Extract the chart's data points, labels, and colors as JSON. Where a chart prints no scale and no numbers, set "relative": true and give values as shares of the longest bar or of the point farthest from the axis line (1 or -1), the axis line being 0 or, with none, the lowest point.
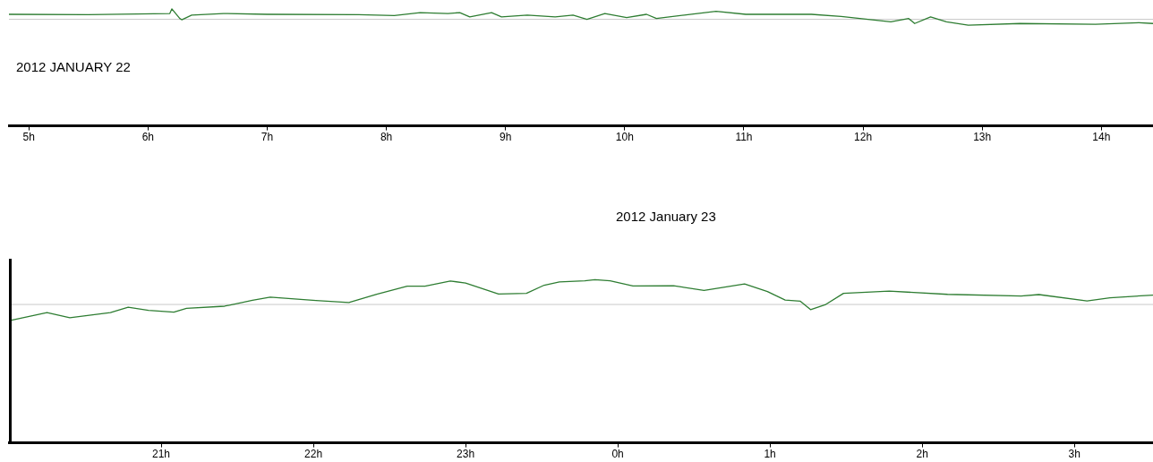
{
  "chart_data": [
    {
      "type": "line",
      "title": "2012 JANUARY 22",
      "relative": true,
      "x": [
        "2012-01-22T04:50",
        "2012-01-22T05:30",
        "2012-01-22T06:11",
        "2012-01-22T06:12",
        "2012-01-22T06:16",
        "2012-01-22T06:17",
        "2012-01-22T06:22",
        "2012-01-22T06:38",
        "2012-01-22T07:00",
        "2012-01-22T07:46",
        "2012-01-22T08:04",
        "2012-01-22T08:17",
        "2012-01-22T08:31",
        "2012-01-22T08:37",
        "2012-01-22T08:42",
        "2012-01-22T08:53",
        "2012-01-22T08:58",
        "2012-01-22T09:11",
        "2012-01-22T09:25",
        "2012-01-22T09:34",
        "2012-01-22T09:41",
        "2012-01-22T09:50",
        "2012-01-22T10:01",
        "2012-01-22T10:11",
        "2012-01-22T10:16",
        "2012-01-22T10:30",
        "2012-01-22T10:46",
        "2012-01-22T11:01",
        "2012-01-22T11:34",
        "2012-01-22T11:49",
        "2012-01-22T12:14",
        "2012-01-22T12:23",
        "2012-01-22T12:26",
        "2012-01-22T12:34",
        "2012-01-22T12:42",
        "2012-01-22T12:53",
        "2012-01-22T13:19",
        "2012-01-22T13:57",
        "2012-01-22T14:19",
        "2012-01-22T14:26"
      ],
      "series": [
        {
          "color": "#2e7d32",
          "values": [
            0.48,
            0.44,
            0.56,
            1,
            0.08,
            -0.04,
            0.4,
            0.56,
            0.48,
            0.44,
            0.36,
            0.64,
            0.56,
            0.64,
            0.24,
            0.64,
            0.24,
            0.4,
            0.24,
            0.4,
            0,
            0.56,
            0.16,
            0.48,
            0.08,
            0.4,
            0.76,
            0.48,
            0.48,
            0.28,
            -0.24,
            0.08,
            -0.4,
            0.24,
            -0.24,
            -0.56,
            -0.4,
            -0.48,
            -0.32,
            -0.4
          ]
        }
      ],
      "xlim": [
        "2012-01-22T04:50",
        "2012-01-22T14:26"
      ],
      "xticks": [
        {
          "value": "2012-01-22T05:00",
          "label": "5h"
        },
        {
          "value": "2012-01-22T06:00",
          "label": "6h"
        },
        {
          "value": "2012-01-22T07:00",
          "label": "7h"
        },
        {
          "value": "2012-01-22T08:00",
          "label": "8h"
        },
        {
          "value": "2012-01-22T09:00",
          "label": "9h"
        },
        {
          "value": "2012-01-22T10:00",
          "label": "10h"
        },
        {
          "value": "2012-01-22T11:00",
          "label": "11h"
        },
        {
          "value": "2012-01-22T12:00",
          "label": "12h"
        },
        {
          "value": "2012-01-22T13:00",
          "label": "13h"
        },
        {
          "value": "2012-01-22T14:00",
          "label": "14h"
        }
      ],
      "ref_lines": [
        {
          "axis": "y",
          "value": 0,
          "color": "#c8c8c8"
        }
      ]
    },
    {
      "type": "line",
      "title": "2012 January 23",
      "relative": true,
      "x": [
        "2012-01-22T20:01",
        "2012-01-22T20:15",
        "2012-01-22T20:24",
        "2012-01-22T20:40",
        "2012-01-22T20:47",
        "2012-01-22T20:55",
        "2012-01-22T21:05",
        "2012-01-22T21:10",
        "2012-01-22T21:25",
        "2012-01-22T21:36",
        "2012-01-22T21:43",
        "2012-01-22T22:01",
        "2012-01-22T22:14",
        "2012-01-22T22:25",
        "2012-01-22T22:37",
        "2012-01-22T22:44",
        "2012-01-22T22:54",
        "2012-01-22T23:00",
        "2012-01-22T23:13",
        "2012-01-22T23:24",
        "2012-01-22T23:31",
        "2012-01-22T23:37",
        "2012-01-22T23:47",
        "2012-01-22T23:51",
        "2012-01-22T23:57",
        "2012-01-23T00:06",
        "2012-01-23T00:22",
        "2012-01-23T00:34",
        "2012-01-23T00:50",
        "2012-01-23T00:59",
        "2012-01-23T01:06",
        "2012-01-23T01:12",
        "2012-01-23T01:16",
        "2012-01-23T01:22",
        "2012-01-23T01:29",
        "2012-01-23T01:47",
        "2012-01-23T02:10",
        "2012-01-23T02:39",
        "2012-01-23T02:46",
        "2012-01-23T03:05",
        "2012-01-23T03:14",
        "2012-01-23T03:31"
      ],
      "series": [
        {
          "color": "#2e7d32",
          "values": [
            -0.64,
            -0.33,
            -0.54,
            -0.33,
            -0.11,
            -0.24,
            -0.31,
            -0.16,
            -0.07,
            0.17,
            0.3,
            0.16,
            0.08,
            0.41,
            0.74,
            0.74,
            0.95,
            0.87,
            0.42,
            0.45,
            0.78,
            0.91,
            0.96,
            1,
            0.96,
            0.75,
            0.76,
            0.57,
            0.83,
            0.52,
            0.18,
            0.13,
            -0.21,
            0,
            0.45,
            0.54,
            0.41,
            0.34,
            0.4,
            0.14,
            0.27,
            0.38
          ]
        }
      ],
      "xlim": [
        "2012-01-22T20:00",
        "2012-01-23T03:31"
      ],
      "xticks": [
        {
          "value": "2012-01-22T21:00",
          "label": "21h"
        },
        {
          "value": "2012-01-22T22:00",
          "label": "22h"
        },
        {
          "value": "2012-01-22T23:00",
          "label": "23h"
        },
        {
          "value": "2012-01-23T00:00",
          "label": "0h"
        },
        {
          "value": "2012-01-23T01:00",
          "label": "1h"
        },
        {
          "value": "2012-01-23T02:00",
          "label": "2h"
        },
        {
          "value": "2012-01-23T03:00",
          "label": "3h"
        }
      ],
      "ref_lines": [
        {
          "axis": "y",
          "value": 0,
          "color": "#c8c8c8"
        }
      ]
    }
  ]
}
